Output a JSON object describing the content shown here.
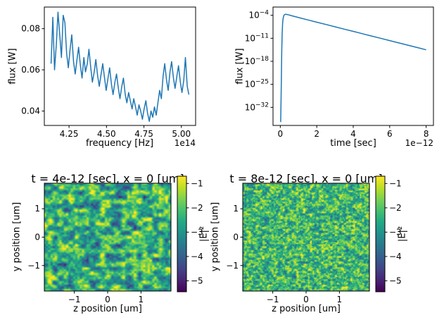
{
  "colors": {
    "line": "#1f77b4",
    "text": "#000000",
    "background": "#ffffff",
    "viridis": [
      "#440154",
      "#482475",
      "#414487",
      "#355f8d",
      "#2a788e",
      "#21918c",
      "#22a884",
      "#44bf70",
      "#7ad151",
      "#bddf26",
      "#fde725"
    ]
  },
  "chart_data": [
    {
      "id": "flux-vs-frequency",
      "type": "line",
      "xlabel": "frequency [Hz]",
      "ylabel": "flux [W]",
      "x_offset_text": "1e14",
      "xlim": [
        4.085,
        5.095
      ],
      "ylim": [
        0.033,
        0.0905
      ],
      "xticks": [
        4.25,
        4.5,
        4.75,
        5.0
      ],
      "yticks": [
        0.04,
        0.06,
        0.08
      ],
      "grid": false,
      "x": [
        4.13,
        4.142,
        4.153,
        4.165,
        4.176,
        4.188,
        4.199,
        4.211,
        4.222,
        4.234,
        4.245,
        4.257,
        4.268,
        4.28,
        4.291,
        4.303,
        4.314,
        4.326,
        4.337,
        4.349,
        4.36,
        4.372,
        4.383,
        4.395,
        4.406,
        4.418,
        4.429,
        4.441,
        4.452,
        4.464,
        4.475,
        4.487,
        4.498,
        4.51,
        4.521,
        4.533,
        4.544,
        4.556,
        4.567,
        4.579,
        4.59,
        4.602,
        4.613,
        4.625,
        4.636,
        4.648,
        4.659,
        4.671,
        4.682,
        4.694,
        4.705,
        4.717,
        4.728,
        4.74,
        4.751,
        4.763,
        4.774,
        4.786,
        4.797,
        4.809,
        4.82,
        4.832,
        4.843,
        4.855,
        4.866,
        4.878,
        4.889,
        4.901,
        4.912,
        4.924,
        4.935,
        4.947,
        4.958,
        4.97,
        4.981,
        4.993,
        5.004,
        5.016,
        5.027,
        5.039,
        5.05
      ],
      "y": [
        0.063,
        0.0855,
        0.06,
        0.072,
        0.088,
        0.077,
        0.066,
        0.0865,
        0.083,
        0.068,
        0.061,
        0.07,
        0.077,
        0.064,
        0.058,
        0.065,
        0.071,
        0.062,
        0.056,
        0.066,
        0.059,
        0.063,
        0.07,
        0.061,
        0.054,
        0.059,
        0.065,
        0.057,
        0.052,
        0.058,
        0.063,
        0.056,
        0.05,
        0.056,
        0.061,
        0.053,
        0.048,
        0.054,
        0.058,
        0.051,
        0.046,
        0.052,
        0.056,
        0.048,
        0.044,
        0.049,
        0.045,
        0.041,
        0.046,
        0.042,
        0.038,
        0.043,
        0.04,
        0.036,
        0.041,
        0.045,
        0.039,
        0.035,
        0.04,
        0.037,
        0.042,
        0.038,
        0.044,
        0.05,
        0.046,
        0.057,
        0.063,
        0.055,
        0.05,
        0.059,
        0.064,
        0.056,
        0.051,
        0.057,
        0.062,
        0.054,
        0.049,
        0.055,
        0.066,
        0.052,
        0.048
      ]
    },
    {
      "id": "flux-vs-time",
      "type": "line",
      "yscale": "log",
      "xlabel": "time [sec]",
      "ylabel": "flux [W]",
      "x_offset_text": "1e−12",
      "xlim": [
        -0.4,
        8.4
      ],
      "ylog_lim": [
        -37.5,
        -1.5
      ],
      "xticks": [
        0,
        2,
        4,
        6,
        8
      ],
      "ytick_exponents": [
        -4,
        -11,
        -18,
        -25,
        -32
      ],
      "grid": false,
      "x": [
        0.02,
        0.05,
        0.08,
        0.1,
        0.13,
        0.16,
        0.2,
        0.25,
        0.3,
        0.4,
        0.6,
        0.8,
        1.0,
        1.5,
        2.0,
        2.5,
        3.0,
        3.5,
        4.0,
        4.5,
        5.0,
        5.5,
        6.0,
        6.5,
        7.0,
        7.5,
        8.0
      ],
      "log10y": [
        -36.5,
        -26,
        -15,
        -9.5,
        -6.2,
        -4.8,
        -4.0,
        -3.75,
        -3.7,
        -3.8,
        -4.1,
        -4.4,
        -4.7,
        -5.4,
        -6.1,
        -6.8,
        -7.5,
        -8.2,
        -8.9,
        -9.6,
        -10.3,
        -11.0,
        -11.7,
        -12.4,
        -13.1,
        -13.8,
        -14.5
      ]
    },
    {
      "id": "field-slice-t4",
      "type": "heatmap",
      "title": "t = 4e-12 [sec], x = 0 [um]",
      "xlabel": "z position [um]",
      "ylabel": "y position [um]",
      "xlim": [
        -1.9,
        1.9
      ],
      "ylim": [
        -1.9,
        1.9
      ],
      "xticks": [
        -1,
        0,
        1
      ],
      "yticks": [
        1,
        0,
        -1
      ],
      "colormap": "viridis",
      "colorbar": {
        "label": "|E|²",
        "ticks": [
          -1,
          -2,
          -3,
          -4,
          -5
        ],
        "vmin": -5.45,
        "vmax": -0.7
      },
      "noise": {
        "seed": 7,
        "cells": 24,
        "cells2": 56,
        "mean": -2.55,
        "amp": 1.7,
        "amp2": 0.85
      }
    },
    {
      "id": "field-slice-t8",
      "type": "heatmap",
      "title": "t = 8e-12 [sec], x = 0 [um]",
      "xlabel": "z position [um]",
      "ylabel": "y position [um]",
      "xlim": [
        -1.9,
        1.9
      ],
      "ylim": [
        -1.9,
        1.9
      ],
      "xticks": [
        -1,
        0,
        1
      ],
      "yticks": [
        1,
        0,
        -1
      ],
      "colormap": "viridis",
      "colorbar": {
        "label": "|E|²",
        "ticks": [
          -1,
          -2,
          -3,
          -4,
          -5
        ],
        "vmin": -5.45,
        "vmax": -0.7
      },
      "noise": {
        "seed": 13,
        "cells": 56,
        "cells2": 110,
        "mean": -2.25,
        "amp": 1.3,
        "amp2": 0.95
      }
    }
  ]
}
